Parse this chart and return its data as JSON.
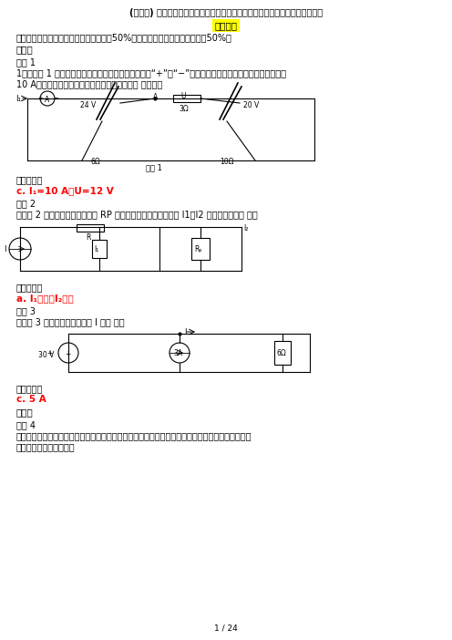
{
  "title": "(更新版) 国家开放大学电大专科《电工电子技术》机考网考形考网络题库及答案",
  "highlight_text": "盗传必究",
  "exam_note": "考试说明：形成性考核占课程综合成绩的50%，终结性考试占课程综合成绩的50%。",
  "section1": "单选题",
  "ti1": "题目 1",
  "q1_line1": "1．在题图 1 所示的电路中，电流表的正、负接线端用“+”、“−”号标出，现电流表指针正向偏转，示数为",
  "q1_line2": "10 A。有关电流、电压方向也表示在图中，则（ ）正确。",
  "choice1": "选择一项：",
  "answer1": "c. I₁=10 A，U=12 V",
  "ti2": "题目 2",
  "q2": "在题图 2 所示的电路中，电位器 RP 的滑动端向下移动时，电流 I1、I2 的变化趋势是（ ）。",
  "choice2": "选择一项：",
  "answer2": "a. I₁增大，I₂减小",
  "ti3": "题目 3",
  "q3": "在题图 3 所示的电路中，电流 I 为（ ）。",
  "choice3": "选择一项：",
  "answer3": "c. 5 A",
  "section2": "判断题",
  "ti4": "题目 4",
  "q4_line1": "判别一个元件是吸收功率还是提供功率，取决于元件上电压和电流的实际方向，二者相同时是提供功",
  "q4_line2": "率，相反时是吸收功率。",
  "page_note": "1 / 24",
  "bg_color": "#ffffff",
  "text_color": "#000000",
  "answer_color": "#ff0000",
  "highlight_bg": "#ffff00"
}
